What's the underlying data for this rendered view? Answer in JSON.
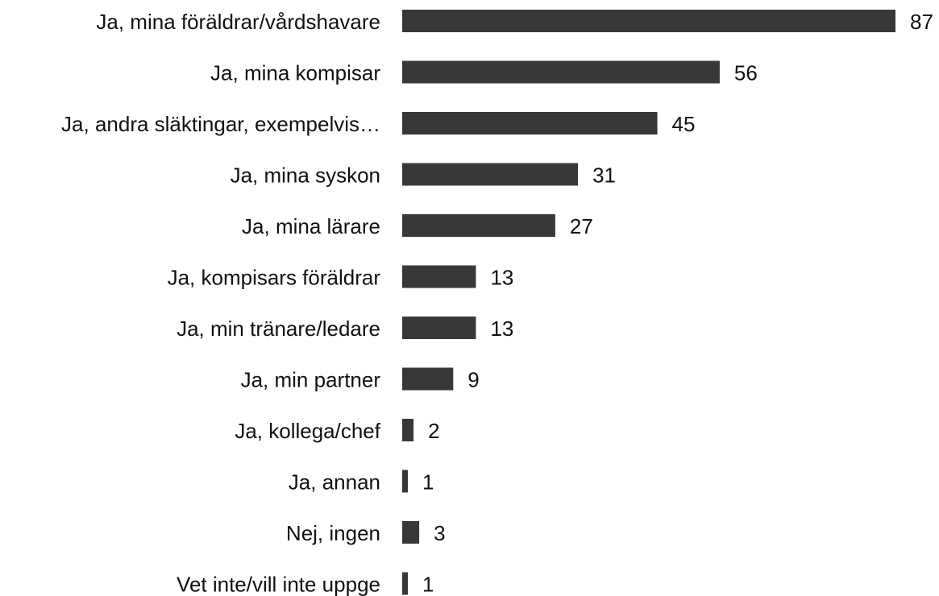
{
  "chart_data": {
    "type": "barh",
    "color": "#383838",
    "categories": [
      "Ja, mina föräldrar/vårdshavare",
      "Ja, mina kompisar",
      "Ja, andra släktingar, exempelvis…",
      "Ja, mina syskon",
      "Ja, mina lärare",
      "Ja, kompisars föräldrar",
      "Ja, min tränare/ledare",
      "Ja, min partner",
      "Ja, kollega/chef",
      "Ja, annan",
      "Nej, ingen",
      "Vet inte/vill inte uppge"
    ],
    "values": [
      87,
      56,
      45,
      31,
      27,
      13,
      13,
      9,
      2,
      1,
      3,
      1
    ]
  }
}
